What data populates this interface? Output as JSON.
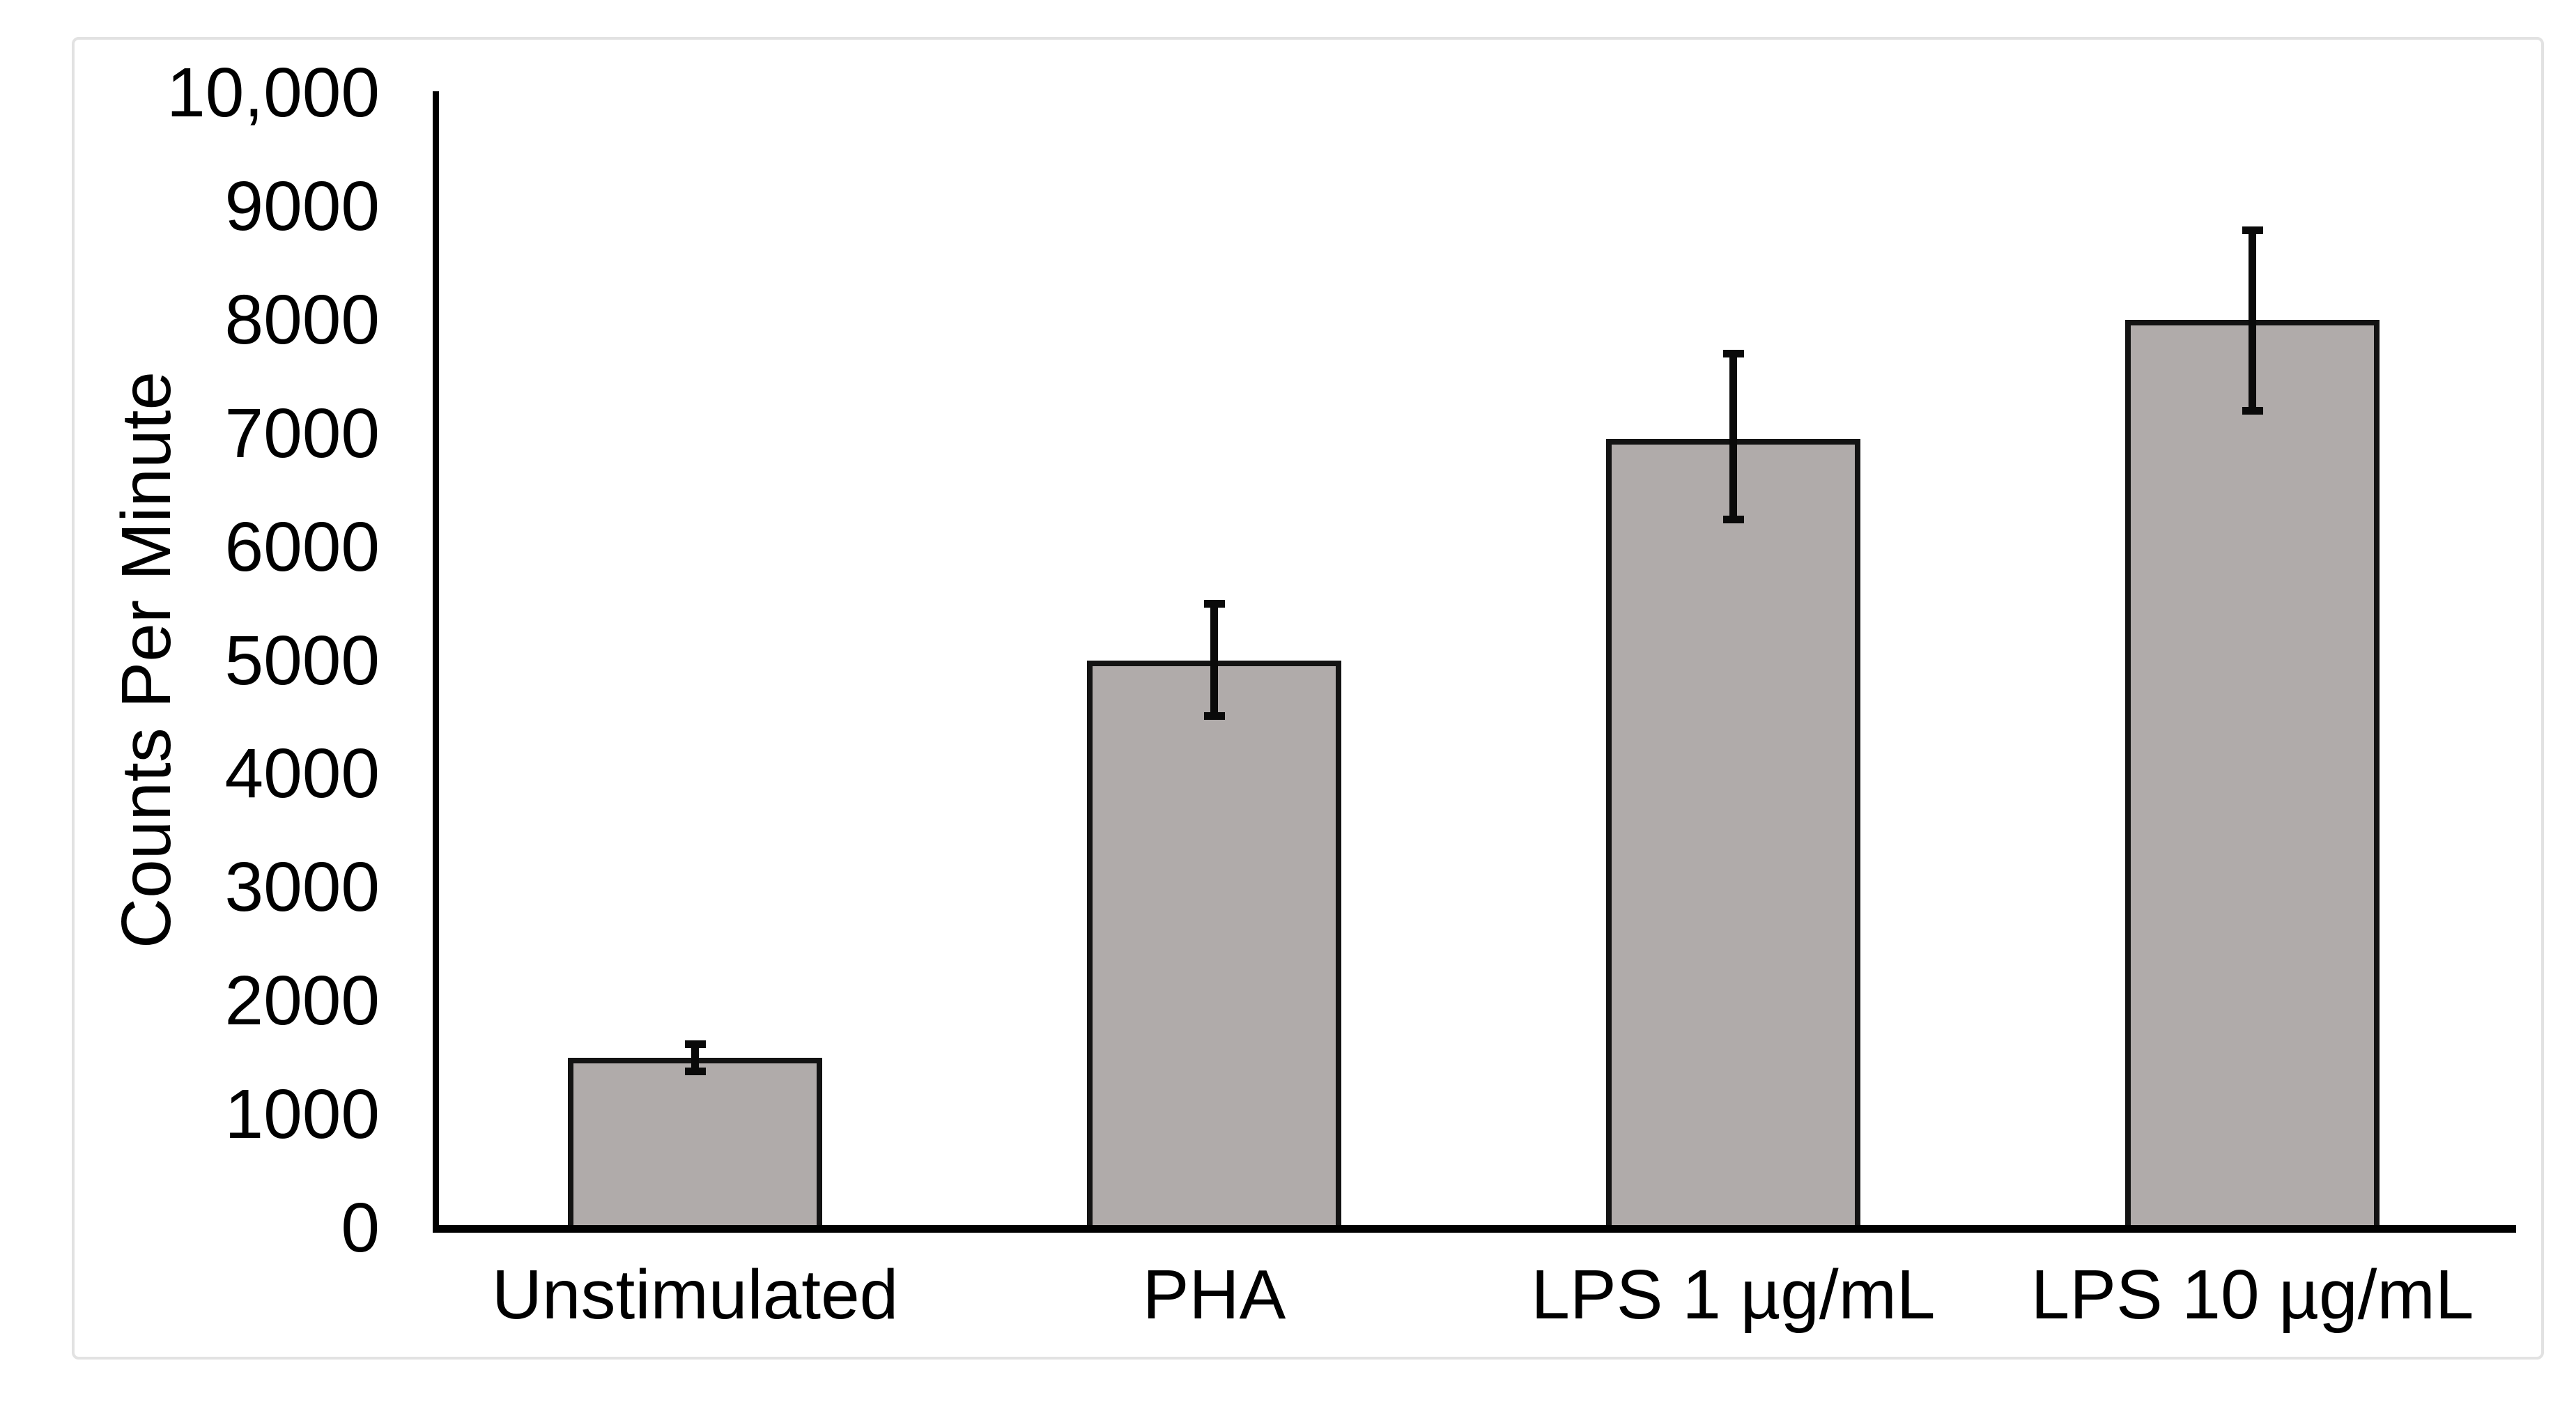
{
  "chart_data": {
    "type": "bar",
    "title": "",
    "xlabel": "",
    "ylabel": "Counts Per Minute",
    "categories": [
      "Unstimulated",
      "PHA",
      "LPS 1 µg/mL",
      "LPS 10 µg/mL"
    ],
    "values": [
      1500,
      5000,
      6950,
      8000
    ],
    "error_plus": [
      120,
      500,
      750,
      790
    ],
    "error_minus": [
      120,
      490,
      710,
      800
    ],
    "ylim": [
      0,
      10000
    ],
    "ytick_interval": 1000,
    "ytick_labels": [
      "0",
      "1000",
      "2000",
      "3000",
      "4000",
      "5000",
      "6000",
      "7000",
      "8000",
      "9000",
      "10,000"
    ],
    "grid": false,
    "legend": false,
    "colors": {
      "bar_fill": "#b0abaa",
      "bar_border": "#131313",
      "error_bar": "#0a0a0a",
      "axis": "#000000",
      "frame_border": "#e2e2e2",
      "background": "#ffffff"
    }
  }
}
